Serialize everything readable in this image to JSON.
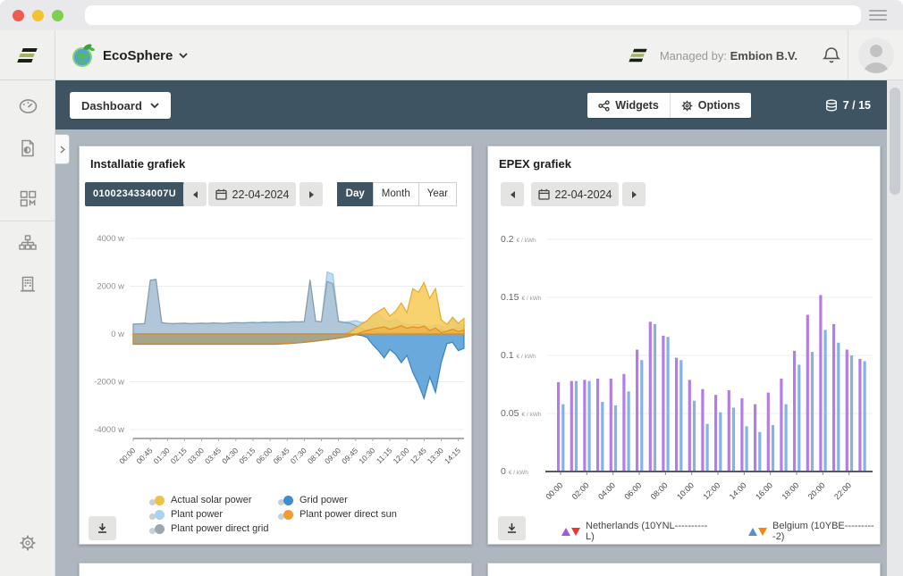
{
  "window": {
    "url_bar_value": ""
  },
  "header": {
    "brand": "EcoSphere",
    "managed_by_label": "Managed by:",
    "managed_by_value": "Embion B.V."
  },
  "navbar": {
    "dashboard_label": "Dashboard",
    "widgets_label": "Widgets",
    "options_label": "Options",
    "counter": "7 / 15"
  },
  "sidebar": {
    "icons": [
      "dashboard-gauge",
      "report-document",
      "widgets-grid",
      "sitemap",
      "building",
      "settings-gear"
    ]
  },
  "panels": {
    "installatie": {
      "title": "Installatie grafiek",
      "device_id": "0100234334007U",
      "date": "22-04-2024",
      "tabs": [
        "Day",
        "Month",
        "Year"
      ],
      "active_tab": "Day",
      "legend": [
        {
          "label": "Actual solar power",
          "color": "#f0c143",
          "col": 1
        },
        {
          "label": "Plant power",
          "color": "#a9d3f2",
          "col": 1
        },
        {
          "label": "Plant power direct grid",
          "color": "#9aa8b2",
          "col": 1
        },
        {
          "label": "Grid power",
          "color": "#3c8fd0",
          "col": 2
        },
        {
          "label": "Plant power direct sun",
          "color": "#ef9d2c",
          "col": 2
        }
      ]
    },
    "epex": {
      "title": "EPEX grafiek",
      "date": "22-04-2024",
      "legend": [
        {
          "label": "Netherlands (10YNL----------L)",
          "up_color": "#a356e0",
          "down_color": "#e63a34"
        },
        {
          "label": "Belgium (10YBE----------2)",
          "up_color": "#5a8ed8",
          "down_color": "#f2890f"
        }
      ]
    }
  },
  "chart_data": [
    {
      "type": "area",
      "title": "Installatie grafiek",
      "ylabel": "W",
      "ylim": [
        -4000,
        4000
      ],
      "x_step_hours": 0.25,
      "x_max_hours": 14.5,
      "yticks": [
        {
          "value": 4000,
          "label": "4000 w"
        },
        {
          "value": 2000,
          "label": "2000 w"
        },
        {
          "value": 0,
          "label": "0 w"
        },
        {
          "value": -2000,
          "label": "-2000 w"
        },
        {
          "value": -4000,
          "label": "-4000 w"
        }
      ],
      "xtick_step_hours": 0.75,
      "xticks": [
        "00:00",
        "00:45",
        "01:30",
        "02:15",
        "03:00",
        "03:45",
        "04:30",
        "05:15",
        "06:00",
        "06:45",
        "07:30",
        "08:15",
        "09:00",
        "09:45",
        "10:30",
        "11:15",
        "12:00",
        "12:45",
        "13:30",
        "14:15"
      ],
      "series": [
        {
          "name": "Grid power",
          "fill": "#4f9ad6",
          "stroke": "#2e7cbc",
          "opacity": 0.85,
          "values": [
            -430,
            -430,
            -430,
            -430,
            -430,
            -430,
            -430,
            -430,
            -430,
            -430,
            -430,
            -430,
            -430,
            -430,
            -430,
            -430,
            -430,
            -430,
            -430,
            -430,
            -430,
            -430,
            -430,
            -430,
            -430,
            -430,
            -415,
            -405,
            -390,
            -370,
            -350,
            -325,
            -300,
            -270,
            -240,
            -210,
            -175,
            -135,
            -85,
            -30,
            -60,
            -150,
            -450,
            -700,
            -1000,
            -650,
            -850,
            -1200,
            -900,
            -1600,
            -2100,
            -2700,
            -1800,
            -2450,
            -1200,
            -400,
            -350,
            -700,
            -600
          ]
        },
        {
          "name": "Plant power",
          "fill": "#aed6f5",
          "stroke": "#8fc2ec",
          "opacity": 0.8,
          "values": [
            420,
            430,
            440,
            2250,
            2300,
            480,
            450,
            440,
            450,
            460,
            440,
            450,
            460,
            450,
            470,
            460,
            450,
            470,
            480,
            470,
            480,
            490,
            480,
            500,
            490,
            500,
            510,
            500,
            520,
            510,
            530,
            2280,
            540,
            520,
            2600,
            2500,
            540,
            500,
            520,
            560,
            480,
            520,
            700,
            850,
            600,
            520,
            650,
            450,
            400,
            380,
            420,
            350,
            300,
            380,
            330,
            280,
            700,
            420,
            380
          ]
        },
        {
          "name": "Plant power direct grid",
          "fill": "#9fabb4",
          "stroke": "#8a98a2",
          "opacity": 0.45,
          "values": [
            410,
            420,
            430,
            2250,
            2270,
            470,
            440,
            430,
            440,
            450,
            430,
            440,
            450,
            440,
            460,
            450,
            440,
            460,
            470,
            460,
            470,
            480,
            470,
            490,
            480,
            490,
            500,
            490,
            510,
            500,
            520,
            2250,
            530,
            510,
            2200,
            2100,
            520,
            480,
            450,
            350,
            220,
            150,
            100,
            80,
            60,
            50,
            60,
            40,
            30,
            30,
            40,
            30,
            150,
            120,
            200,
            100,
            180,
            260,
            220
          ]
        },
        {
          "name": "Actual solar power",
          "fill": "#f6ca55",
          "stroke": "#e2a41f",
          "opacity": 0.85,
          "values": [
            0,
            0,
            0,
            0,
            0,
            0,
            0,
            0,
            0,
            0,
            0,
            0,
            0,
            0,
            0,
            0,
            0,
            0,
            0,
            0,
            0,
            0,
            0,
            0,
            0,
            0,
            0,
            0,
            0,
            0,
            0,
            0,
            0,
            0,
            0,
            0,
            0,
            0,
            80,
            250,
            420,
            560,
            800,
            950,
            1100,
            750,
            950,
            1300,
            900,
            1900,
            1750,
            2150,
            1500,
            1900,
            600,
            400,
            700,
            450,
            650
          ]
        },
        {
          "name": "Plant power direct sun",
          "fill": "#ef9d2c",
          "stroke": "#e08a18",
          "opacity": 0.45,
          "values": [
            -420,
            -420,
            -420,
            -420,
            -420,
            -420,
            -420,
            -420,
            -420,
            -420,
            -420,
            -420,
            -420,
            -420,
            -420,
            -420,
            -420,
            -420,
            -420,
            -420,
            -420,
            -420,
            -420,
            -420,
            -420,
            -420,
            -408,
            -398,
            -383,
            -363,
            -343,
            -318,
            -293,
            -263,
            -233,
            -203,
            -168,
            -128,
            -78,
            -20,
            80,
            150,
            210,
            255,
            300,
            200,
            260,
            350,
            240,
            300,
            260,
            330,
            150,
            250,
            60,
            120,
            200,
            100,
            160
          ]
        }
      ]
    },
    {
      "type": "bar",
      "title": "EPEX grafiek",
      "ylabel": "€ / kWh",
      "ylim": [
        0,
        0.2
      ],
      "unit": "€ / kWh",
      "yticks": [
        {
          "value": 0.2,
          "label": "0.2"
        },
        {
          "value": 0.15,
          "label": "0.15"
        },
        {
          "value": 0.1,
          "label": "0.1"
        },
        {
          "value": 0.05,
          "label": "0.05"
        },
        {
          "value": 0,
          "label": "0"
        }
      ],
      "categories": [
        "00:00",
        "01:00",
        "02:00",
        "03:00",
        "04:00",
        "05:00",
        "06:00",
        "07:00",
        "08:00",
        "09:00",
        "10:00",
        "11:00",
        "12:00",
        "13:00",
        "14:00",
        "15:00",
        "16:00",
        "17:00",
        "18:00",
        "19:00",
        "20:00",
        "21:00",
        "22:00",
        "23:00"
      ],
      "xticks": [
        "00:00",
        "02:00",
        "04:00",
        "06:00",
        "08:00",
        "10:00",
        "12:00",
        "14:00",
        "16:00",
        "18:00",
        "20:00",
        "22:00"
      ],
      "xtick_every": 2,
      "series": [
        {
          "name": "Netherlands (10YNL----------L)",
          "color": "#b57de4",
          "values": [
            0.077,
            0.078,
            0.079,
            0.08,
            0.08,
            0.084,
            0.105,
            0.129,
            0.117,
            0.098,
            0.079,
            0.071,
            0.066,
            0.07,
            0.063,
            0.058,
            0.068,
            0.08,
            0.104,
            0.135,
            0.152,
            0.127,
            0.105,
            0.097
          ]
        },
        {
          "name": "Belgium (10YBE----------2)",
          "color": "#85b2e4",
          "values": [
            0.058,
            0.078,
            0.078,
            0.06,
            0.057,
            0.069,
            0.096,
            0.127,
            0.116,
            0.096,
            0.061,
            0.041,
            0.051,
            0.055,
            0.039,
            0.034,
            0.04,
            0.058,
            0.092,
            0.103,
            0.122,
            0.111,
            0.1,
            0.095
          ]
        }
      ]
    }
  ]
}
